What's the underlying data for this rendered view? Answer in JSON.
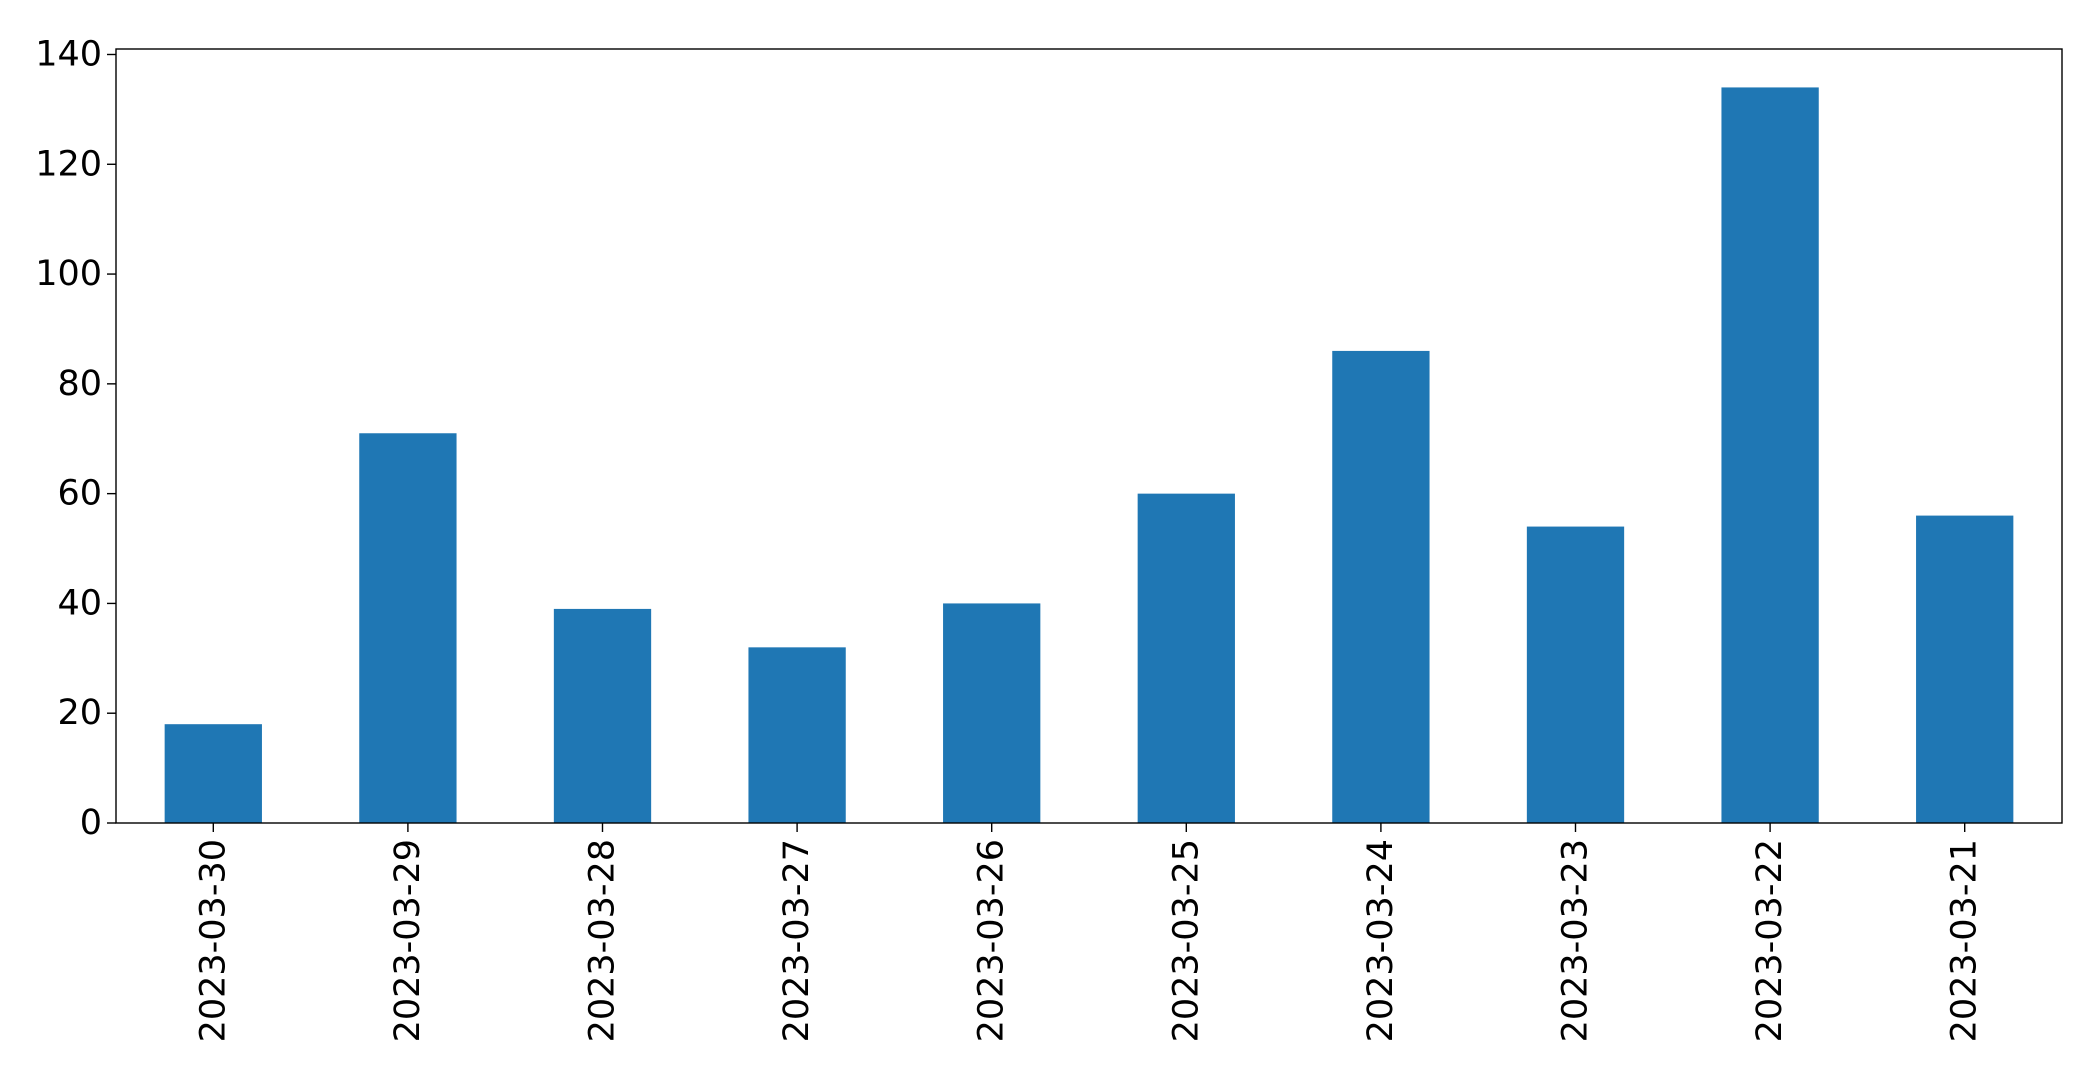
{
  "chart_data": {
    "type": "bar",
    "title": "",
    "xlabel": "",
    "ylabel": "",
    "categories": [
      "2023-03-30",
      "2023-03-29",
      "2023-03-28",
      "2023-03-27",
      "2023-03-26",
      "2023-03-25",
      "2023-03-24",
      "2023-03-23",
      "2023-03-22",
      "2023-03-21"
    ],
    "values": [
      18,
      71,
      39,
      32,
      40,
      60,
      86,
      54,
      134,
      56
    ],
    "ylim": [
      0,
      141
    ],
    "yticks": [
      0,
      20,
      40,
      60,
      80,
      100,
      120,
      140
    ],
    "grid": false,
    "legend": "none",
    "colors": {
      "bar": "#1f77b4",
      "axis": "#000000",
      "background": "#ffffff"
    }
  }
}
